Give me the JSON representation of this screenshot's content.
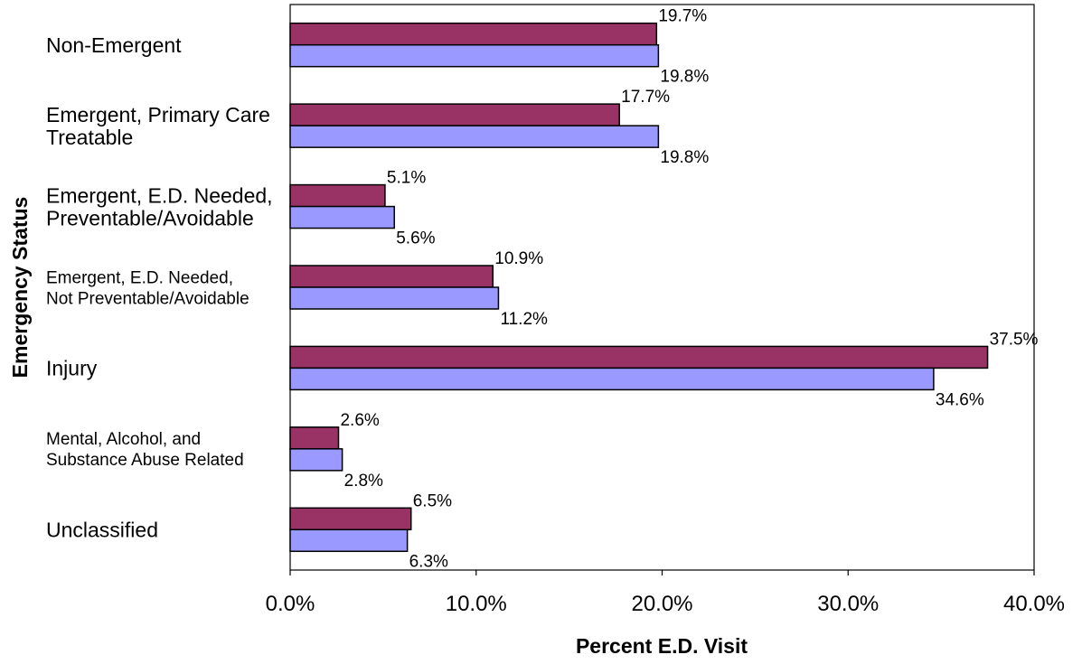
{
  "chart_data": {
    "type": "bar",
    "orientation": "horizontal",
    "xlabel": "Percent E.D. Visit",
    "ylabel": "Emergency Status",
    "xlim": [
      0,
      40
    ],
    "x_ticks": [
      "0.0%",
      "10.0%",
      "20.0%",
      "30.0%",
      "40.0%"
    ],
    "grid": false,
    "legend": "none",
    "categories": [
      [
        "Non-Emergent"
      ],
      [
        "Emergent, Primary Care",
        "Treatable"
      ],
      [
        "Emergent, E.D. Needed,",
        "Preventable/Avoidable"
      ],
      [
        "Emergent, E.D. Needed,",
        "Not Preventable/Avoidable"
      ],
      [
        "Injury"
      ],
      [
        "Mental, Alcohol, and",
        "Substance Abuse Related"
      ],
      [
        "Unclassified"
      ]
    ],
    "series": [
      {
        "color": "#993366",
        "values": [
          19.7,
          17.7,
          5.1,
          10.9,
          37.5,
          2.6,
          6.5
        ],
        "labels": [
          "19.7%",
          "17.7%",
          "5.1%",
          "10.9%",
          "37.5%",
          "2.6%",
          "6.5%"
        ]
      },
      {
        "color": "#9999ff",
        "values": [
          19.8,
          19.8,
          5.6,
          11.2,
          34.6,
          2.8,
          6.3
        ],
        "labels": [
          "19.8%",
          "19.8%",
          "5.6%",
          "11.2%",
          "34.6%",
          "2.8%",
          "6.3%"
        ]
      }
    ]
  }
}
